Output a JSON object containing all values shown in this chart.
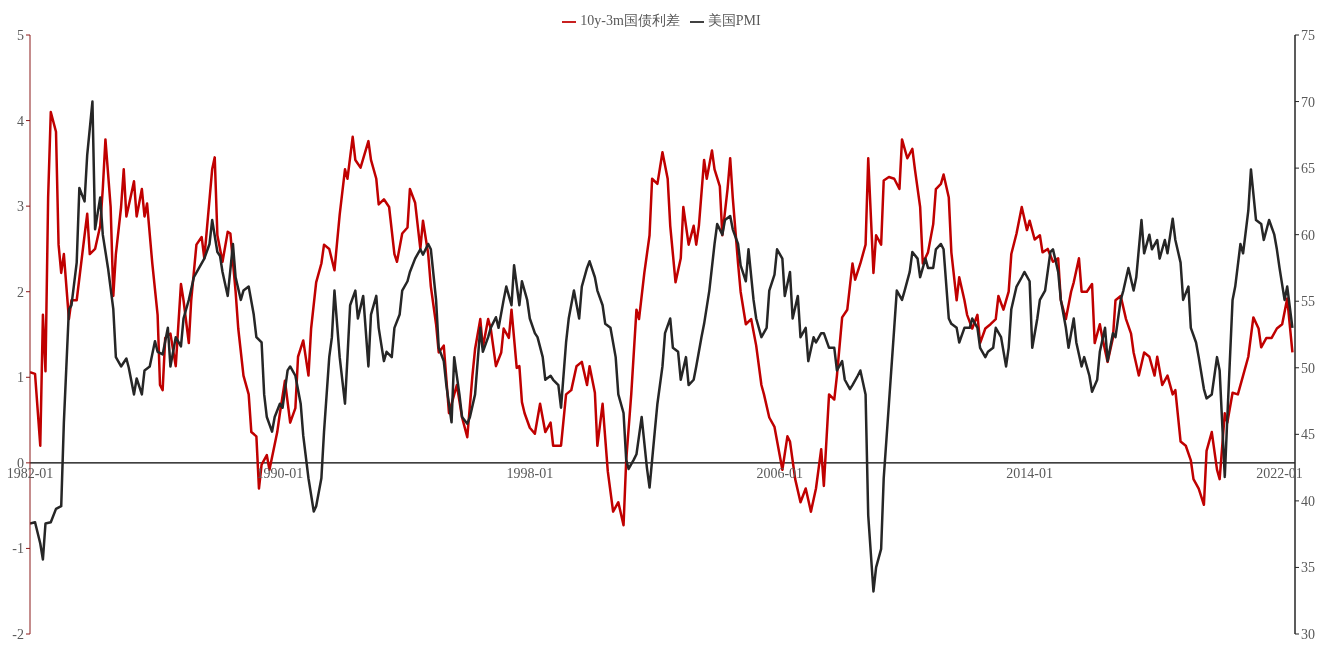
{
  "chart_data": {
    "type": "line",
    "legend": "top",
    "xlim": [
      "1982-01",
      "2022-07"
    ],
    "xticks": [
      "1982-01",
      "1990-01",
      "1998-01",
      "2006-01",
      "2014-01",
      "2022-01"
    ],
    "ylim": [
      -2,
      5
    ],
    "yticks": [
      -2,
      -1,
      0,
      1,
      2,
      3,
      4,
      5
    ],
    "y2lim": [
      30,
      75
    ],
    "y2ticks": [
      30,
      35,
      40,
      45,
      50,
      55,
      60,
      65,
      70,
      75
    ],
    "grid": false,
    "marker": "none",
    "line_style": "solid",
    "series": [
      {
        "name": "10y-3m国债利差",
        "color": "#c00000",
        "x": [
          "1982-01",
          "1982-03",
          "1982-05",
          "1982-06",
          "1982-07",
          "1982-08",
          "1982-09",
          "1982-11",
          "1982-12",
          "1983-01",
          "1983-02",
          "1983-04",
          "1983-05",
          "1983-07",
          "1983-10",
          "1983-11",
          "1983-12",
          "1984-02",
          "1984-04",
          "1984-05",
          "1984-06",
          "1984-08",
          "1984-09",
          "1984-10",
          "1984-12",
          "1985-01",
          "1985-02",
          "1985-04",
          "1985-05",
          "1985-06",
          "1985-08",
          "1985-09",
          "1985-10",
          "1985-12",
          "1986-02",
          "1986-03",
          "1986-04",
          "1986-05",
          "1986-07",
          "1986-09",
          "1986-11",
          "1986-12",
          "1987-02",
          "1987-03",
          "1987-05",
          "1987-07",
          "1987-08",
          "1987-11",
          "1987-12",
          "1988-01",
          "1988-03",
          "1988-05",
          "1988-06",
          "1988-08",
          "1988-09",
          "1988-11",
          "1989-01",
          "1989-02",
          "1989-04",
          "1989-05",
          "1989-06",
          "1989-08",
          "1989-09",
          "1989-12",
          "1990-01",
          "1990-03",
          "1990-05",
          "1990-07",
          "1990-08",
          "1990-10",
          "1990-12",
          "1991-01",
          "1991-03",
          "1991-05",
          "1991-06",
          "1991-08",
          "1991-10",
          "1991-12",
          "1992-02",
          "1992-03",
          "1992-05",
          "1992-06",
          "1992-08",
          "1992-11",
          "1992-12",
          "1993-02",
          "1993-03",
          "1993-05",
          "1993-07",
          "1993-09",
          "1993-10",
          "1993-12",
          "1994-02",
          "1994-03",
          "1994-05",
          "1994-07",
          "1994-08",
          "1994-10",
          "1994-11",
          "1995-01",
          "1995-02",
          "1995-04",
          "1995-06",
          "1995-08",
          "1995-09",
          "1995-11",
          "1996-01",
          "1996-03",
          "1996-04",
          "1996-06",
          "1996-07",
          "1996-09",
          "1996-10",
          "1996-12",
          "1997-02",
          "1997-03",
          "1997-05",
          "1997-06",
          "1997-08",
          "1997-09",
          "1997-10",
          "1997-11",
          "1998-01",
          "1998-03",
          "1998-05",
          "1998-07",
          "1998-09",
          "1998-10",
          "1999-01",
          "1999-03",
          "1999-05",
          "1999-07",
          "1999-09",
          "1999-11",
          "1999-12",
          "2000-02",
          "2000-03",
          "2000-05",
          "2000-07",
          "2000-09",
          "2000-11",
          "2001-01",
          "2001-02",
          "2001-04",
          "2001-06",
          "2001-07",
          "2001-09",
          "2001-11",
          "2001-12",
          "2002-02",
          "2002-04",
          "2002-06",
          "2002-07",
          "2002-09",
          "2002-11",
          "2002-12",
          "2003-02",
          "2003-04",
          "2003-05",
          "2003-06",
          "2003-08",
          "2003-09",
          "2003-11",
          "2003-12",
          "2004-02",
          "2004-03",
          "2004-05",
          "2004-06",
          "2004-07",
          "2004-09",
          "2004-10",
          "2004-12",
          "2005-02",
          "2005-04",
          "2005-06",
          "2005-07",
          "2005-09",
          "2005-11",
          "2006-01",
          "2006-02",
          "2006-04",
          "2006-05",
          "2006-07",
          "2006-09",
          "2006-11",
          "2007-01",
          "2007-03",
          "2007-05",
          "2007-06",
          "2007-08",
          "2007-10",
          "2007-11",
          "2008-01",
          "2008-03",
          "2008-05",
          "2008-06",
          "2008-08",
          "2008-10",
          "2008-11",
          "2009-01",
          "2009-02",
          "2009-04",
          "2009-05",
          "2009-07",
          "2009-09",
          "2009-11",
          "2009-12",
          "2010-02",
          "2010-04",
          "2010-05",
          "2010-07",
          "2010-08",
          "2010-10",
          "2010-12",
          "2011-01",
          "2011-03",
          "2011-04",
          "2011-06",
          "2011-07",
          "2011-09",
          "2011-10",
          "2011-12",
          "2012-01",
          "2012-03",
          "2012-05",
          "2012-06",
          "2012-08",
          "2012-10",
          "2012-12",
          "2013-01",
          "2013-03",
          "2013-05",
          "2013-06",
          "2013-08",
          "2013-10",
          "2013-12",
          "2014-01",
          "2014-03",
          "2014-05",
          "2014-06",
          "2014-08",
          "2014-10",
          "2014-12",
          "2015-01",
          "2015-03",
          "2015-05",
          "2015-06",
          "2015-08",
          "2015-09",
          "2015-11",
          "2016-01",
          "2016-02",
          "2016-04",
          "2016-05",
          "2016-07",
          "2016-09",
          "2016-10",
          "2016-12",
          "2017-02",
          "2017-04",
          "2017-05",
          "2017-07",
          "2017-09",
          "2017-11",
          "2018-01",
          "2018-02",
          "2018-04",
          "2018-06",
          "2018-08",
          "2018-09",
          "2018-11",
          "2019-01",
          "2019-03",
          "2019-04",
          "2019-06",
          "2019-08",
          "2019-09",
          "2019-11",
          "2020-01",
          "2020-02",
          "2020-04",
          "2020-05",
          "2020-07",
          "2020-09",
          "2020-11",
          "2021-01",
          "2021-03",
          "2021-05",
          "2021-06",
          "2021-08",
          "2021-10",
          "2021-12",
          "2022-02",
          "2022-04",
          "2022-06"
        ],
        "values": [
          1.06,
          1.04,
          0.2,
          1.73,
          1.07,
          3.1,
          4.1,
          3.87,
          2.55,
          2.22,
          2.44,
          1.68,
          1.9,
          1.9,
          2.66,
          2.91,
          2.44,
          2.5,
          2.77,
          3.2,
          3.78,
          2.99,
          1.95,
          2.44,
          2.99,
          3.43,
          2.88,
          3.15,
          3.29,
          2.88,
          3.2,
          2.88,
          3.03,
          2.33,
          1.73,
          0.91,
          0.85,
          1.46,
          1.51,
          1.13,
          2.09,
          1.9,
          1.4,
          1.9,
          2.55,
          2.64,
          2.39,
          3.43,
          3.57,
          2.66,
          2.35,
          2.7,
          2.68,
          2.0,
          1.57,
          1.02,
          0.8,
          0.36,
          0.31,
          -0.3,
          -0.02,
          0.09,
          -0.08,
          0.36,
          0.58,
          0.96,
          0.47,
          0.64,
          1.24,
          1.43,
          1.02,
          1.57,
          2.11,
          2.33,
          2.55,
          2.5,
          2.25,
          2.9,
          3.43,
          3.32,
          3.81,
          3.54,
          3.45,
          3.76,
          3.54,
          3.32,
          3.02,
          3.08,
          2.99,
          2.44,
          2.35,
          2.68,
          2.75,
          3.2,
          3.04,
          2.5,
          2.83,
          2.44,
          2.06,
          1.62,
          1.29,
          1.37,
          0.58,
          0.8,
          0.91,
          0.53,
          0.3,
          1.02,
          1.33,
          1.68,
          1.35,
          1.68,
          1.57,
          1.13,
          1.29,
          1.57,
          1.46,
          1.79,
          1.11,
          1.13,
          0.71,
          0.58,
          0.41,
          0.34,
          0.69,
          0.36,
          0.47,
          0.2,
          0.2,
          0.8,
          0.85,
          1.13,
          1.18,
          0.91,
          1.13,
          0.82,
          0.2,
          0.69,
          -0.1,
          -0.57,
          -0.46,
          -0.73,
          0.03,
          0.8,
          1.79,
          1.68,
          2.22,
          2.66,
          3.32,
          3.26,
          3.63,
          3.32,
          2.77,
          2.11,
          2.39,
          2.99,
          2.55,
          2.77,
          2.55,
          2.77,
          3.54,
          3.32,
          3.65,
          3.43,
          3.23,
          2.66,
          3.2,
          3.56,
          3.1,
          2.33,
          2.0,
          1.62,
          1.68,
          1.37,
          0.91,
          0.8,
          0.53,
          0.42,
          0.09,
          -0.08,
          0.31,
          0.25,
          -0.19,
          -0.46,
          -0.3,
          -0.57,
          -0.3,
          0.16,
          -0.27,
          0.8,
          0.74,
          1.02,
          1.7,
          1.79,
          2.33,
          2.14,
          2.33,
          2.55,
          3.56,
          2.22,
          2.66,
          2.55,
          3.3,
          3.34,
          3.32,
          3.2,
          3.78,
          3.56,
          3.67,
          3.43,
          2.99,
          2.33,
          2.46,
          2.79,
          3.2,
          3.26,
          3.37,
          3.1,
          2.46,
          1.9,
          2.17,
          1.9,
          1.73,
          1.57,
          1.73,
          1.4,
          1.57,
          1.62,
          1.68,
          1.95,
          1.79,
          2.0,
          2.44,
          2.68,
          2.99,
          2.72,
          2.83,
          2.61,
          2.66,
          2.46,
          2.5,
          2.35,
          2.39,
          1.9,
          1.68,
          2.0,
          2.11,
          2.39,
          2.0,
          2.0,
          2.09,
          1.4,
          1.62,
          1.46,
          1.18,
          1.46,
          1.9,
          1.95,
          1.68,
          1.51,
          1.29,
          1.02,
          1.29,
          1.24,
          1.02,
          1.24,
          0.91,
          1.02,
          0.8,
          0.85,
          0.25,
          0.2,
          0.03,
          -0.19,
          -0.3,
          -0.49,
          0.14,
          0.36,
          -0.08,
          -0.19,
          0.58,
          0.47,
          0.82,
          0.8,
          1.02,
          1.24,
          1.7,
          1.57,
          1.35,
          1.46,
          1.46,
          1.57,
          1.62,
          1.92,
          1.29
        ]
      },
      {
        "name": "美国PMI",
        "color": "#262626",
        "axis": "y2",
        "x": [
          "1982-01",
          "1982-03",
          "1982-05",
          "1982-06",
          "1982-07",
          "1982-09",
          "1982-11",
          "1983-01",
          "1983-02",
          "1983-04",
          "1983-05",
          "1983-07",
          "1983-08",
          "1983-10",
          "1983-11",
          "1984-01",
          "1984-02",
          "1984-04",
          "1984-05",
          "1984-07",
          "1984-09",
          "1984-10",
          "1984-12",
          "1985-02",
          "1985-03",
          "1985-05",
          "1985-06",
          "1985-08",
          "1985-09",
          "1985-11",
          "1986-01",
          "1986-02",
          "1986-04",
          "1986-06",
          "1986-07",
          "1986-09",
          "1986-11",
          "1986-12",
          "1987-02",
          "1987-04",
          "1987-06",
          "1987-08",
          "1987-10",
          "1987-11",
          "1988-01",
          "1988-02",
          "1988-03",
          "1988-05",
          "1988-07",
          "1988-08",
          "1988-10",
          "1988-11",
          "1989-01",
          "1989-03",
          "1989-04",
          "1989-06",
          "1989-07",
          "1989-08",
          "1989-10",
          "1989-11",
          "1990-01",
          "1990-02",
          "1990-04",
          "1990-05",
          "1990-07",
          "1990-09",
          "1990-10",
          "1990-12",
          "1991-02",
          "1991-03",
          "1991-05",
          "1991-06",
          "1991-08",
          "1991-09",
          "1991-10",
          "1991-12",
          "1992-02",
          "1992-03",
          "1992-04",
          "1992-06",
          "1992-07",
          "1992-09",
          "1992-11",
          "1992-12",
          "1993-02",
          "1993-03",
          "1993-05",
          "1993-06",
          "1993-08",
          "1993-09",
          "1993-11",
          "1993-12",
          "1994-02",
          "1994-03",
          "1994-05",
          "1994-07",
          "1994-08",
          "1994-10",
          "1994-11",
          "1995-01",
          "1995-02",
          "1995-04",
          "1995-05",
          "1995-07",
          "1995-08",
          "1995-10",
          "1995-11",
          "1996-01",
          "1996-02",
          "1996-04",
          "1996-06",
          "1996-07",
          "1996-09",
          "1996-10",
          "1996-12",
          "1997-01",
          "1997-03",
          "1997-04",
          "1997-06",
          "1997-07",
          "1997-09",
          "1997-10",
          "1997-12",
          "1998-01",
          "1998-03",
          "1998-04",
          "1998-06",
          "1998-07",
          "1998-09",
          "1998-10",
          "1998-12",
          "1999-01",
          "1999-03",
          "1999-04",
          "1999-06",
          "1999-08",
          "1999-09",
          "1999-11",
          "1999-12",
          "2000-02",
          "2000-03",
          "2000-05",
          "2000-06",
          "2000-08",
          "2000-10",
          "2000-11",
          "2001-01",
          "2001-02",
          "2001-03",
          "2001-05",
          "2001-06",
          "2001-08",
          "2001-10",
          "2001-11",
          "2002-01",
          "2002-02",
          "2002-04",
          "2002-05",
          "2002-07",
          "2002-08",
          "2002-10",
          "2002-11",
          "2003-01",
          "2003-02",
          "2003-04",
          "2003-05",
          "2003-07",
          "2003-08",
          "2003-10",
          "2003-12",
          "2004-01",
          "2004-03",
          "2004-04",
          "2004-06",
          "2004-07",
          "2004-09",
          "2004-10",
          "2004-12",
          "2005-01",
          "2005-03",
          "2005-04",
          "2005-06",
          "2005-08",
          "2005-09",
          "2005-11",
          "2005-12",
          "2006-02",
          "2006-03",
          "2006-05",
          "2006-06",
          "2006-08",
          "2006-09",
          "2006-11",
          "2006-12",
          "2007-02",
          "2007-03",
          "2007-05",
          "2007-06",
          "2007-08",
          "2007-10",
          "2007-11",
          "2008-01",
          "2008-02",
          "2008-04",
          "2008-05",
          "2008-07",
          "2008-08",
          "2008-10",
          "2008-11",
          "2009-01",
          "2009-02",
          "2009-04",
          "2009-05",
          "2009-07",
          "2009-09",
          "2009-10",
          "2009-12",
          "2010-01",
          "2010-03",
          "2010-04",
          "2010-06",
          "2010-07",
          "2010-09",
          "2010-10",
          "2010-12",
          "2011-01",
          "2011-03",
          "2011-04",
          "2011-06",
          "2011-07",
          "2011-09",
          "2011-10",
          "2011-12",
          "2012-02",
          "2012-03",
          "2012-05",
          "2012-06",
          "2012-08",
          "2012-09",
          "2012-11",
          "2012-12",
          "2013-02",
          "2013-04",
          "2013-05",
          "2013-06",
          "2013-08",
          "2013-10",
          "2013-11",
          "2014-01",
          "2014-02",
          "2014-04",
          "2014-05",
          "2014-07",
          "2014-09",
          "2014-10",
          "2014-12",
          "2015-01",
          "2015-03",
          "2015-04",
          "2015-06",
          "2015-07",
          "2015-09",
          "2015-10",
          "2015-12",
          "2016-01",
          "2016-03",
          "2016-04",
          "2016-06",
          "2016-07",
          "2016-09",
          "2016-10",
          "2016-12",
          "2017-01",
          "2017-03",
          "2017-05",
          "2017-06",
          "2017-08",
          "2017-09",
          "2017-11",
          "2017-12",
          "2018-02",
          "2018-03",
          "2018-05",
          "2018-06",
          "2018-08",
          "2018-09",
          "2018-11",
          "2018-12",
          "2019-02",
          "2019-03",
          "2019-05",
          "2019-06",
          "2019-08",
          "2019-09",
          "2019-11",
          "2020-01",
          "2020-02",
          "2020-04",
          "2020-05",
          "2020-07",
          "2020-08",
          "2020-10",
          "2020-11",
          "2021-01",
          "2021-02",
          "2021-04",
          "2021-06",
          "2021-07",
          "2021-09",
          "2021-11",
          "2021-12",
          "2022-01",
          "2022-03",
          "2022-04",
          "2022-06"
        ],
        "values": [
          38.3,
          38.4,
          36.8,
          35.6,
          38.3,
          38.4,
          39.4,
          39.6,
          45.9,
          54.4,
          54.7,
          57.9,
          63.5,
          62.5,
          66.0,
          70.0,
          60.4,
          62.8,
          60.0,
          57.5,
          54.4,
          50.8,
          50.1,
          50.7,
          50.0,
          48.0,
          49.2,
          48.0,
          49.8,
          50.1,
          52.0,
          51.2,
          51.0,
          53.0,
          50.1,
          52.3,
          51.6,
          53.7,
          55.1,
          56.8,
          57.5,
          58.2,
          59.3,
          61.1,
          58.7,
          58.4,
          57.2,
          55.4,
          59.3,
          56.8,
          55.1,
          55.8,
          56.1,
          54.0,
          52.3,
          51.9,
          48.0,
          46.3,
          45.2,
          46.3,
          47.3,
          47.0,
          49.8,
          50.1,
          49.4,
          47.3,
          44.9,
          41.7,
          39.2,
          39.6,
          41.7,
          45.2,
          50.8,
          52.3,
          55.8,
          50.8,
          47.3,
          50.8,
          54.7,
          55.8,
          53.7,
          55.4,
          50.1,
          54.0,
          55.4,
          53.0,
          50.5,
          51.2,
          50.8,
          53.0,
          54.0,
          55.8,
          56.5,
          57.2,
          58.2,
          58.9,
          58.5,
          59.3,
          58.9,
          55.1,
          51.5,
          50.5,
          48.7,
          45.9,
          50.8,
          48.0,
          46.3,
          45.8,
          46.3,
          48.0,
          53.0,
          51.2,
          52.3,
          53.0,
          53.8,
          53.0,
          55.1,
          56.1,
          54.7,
          57.7,
          54.7,
          56.5,
          55.1,
          53.7,
          52.6,
          52.3,
          50.8,
          49.1,
          49.4,
          49.1,
          48.7,
          47.0,
          51.9,
          53.7,
          55.8,
          53.7,
          56.1,
          57.5,
          58.0,
          56.8,
          55.8,
          54.7,
          53.3,
          53.0,
          50.8,
          48.0,
          46.6,
          43.1,
          42.4,
          43.1,
          43.5,
          46.3,
          42.5,
          41.0,
          45.2,
          47.3,
          50.1,
          52.6,
          53.7,
          51.5,
          51.2,
          49.1,
          50.8,
          48.7,
          49.1,
          50.1,
          52.3,
          53.3,
          55.8,
          59.3,
          60.8,
          60.0,
          61.1,
          61.4,
          60.4,
          59.3,
          57.7,
          56.5,
          58.9,
          55.1,
          53.7,
          52.3,
          53.0,
          55.8,
          57.0,
          58.9,
          58.2,
          55.4,
          57.2,
          53.7,
          55.4,
          52.3,
          53.0,
          50.5,
          52.3,
          51.9,
          52.6,
          52.6,
          51.5,
          51.5,
          49.8,
          50.5,
          49.1,
          48.4,
          48.7,
          49.4,
          49.8,
          48.0,
          38.9,
          33.2,
          35.0,
          36.4,
          41.7,
          47.3,
          53.0,
          55.8,
          55.1,
          55.8,
          57.2,
          58.7,
          58.2,
          56.8,
          58.2,
          57.5,
          57.5,
          58.9,
          59.3,
          58.9,
          53.7,
          53.3,
          53.0,
          51.9,
          53.0,
          53.0,
          53.7,
          53.0,
          51.5,
          50.8,
          51.2,
          51.5,
          53.0,
          52.3,
          50.1,
          51.5,
          54.4,
          56.1,
          56.8,
          57.2,
          56.5,
          51.5,
          53.7,
          55.1,
          55.8,
          58.7,
          58.9,
          57.2,
          55.1,
          53.0,
          51.5,
          53.7,
          51.9,
          50.1,
          50.8,
          49.4,
          48.2,
          49.1,
          51.2,
          53.0,
          50.5,
          52.6,
          52.3,
          55.1,
          55.8,
          57.5,
          55.8,
          56.8,
          61.1,
          58.6,
          60.0,
          58.9,
          59.6,
          58.2,
          59.6,
          58.6,
          61.2,
          59.6,
          57.9,
          55.1,
          56.1,
          53.0,
          51.9,
          50.8,
          48.4,
          47.7,
          48.0,
          50.8,
          49.8,
          41.8,
          46.3,
          55.1,
          56.1,
          59.3,
          58.6,
          61.8,
          64.9,
          61.1,
          60.8,
          59.6,
          61.1,
          60.0,
          58.9,
          57.5,
          55.1,
          56.1,
          53.0
        ]
      }
    ]
  }
}
